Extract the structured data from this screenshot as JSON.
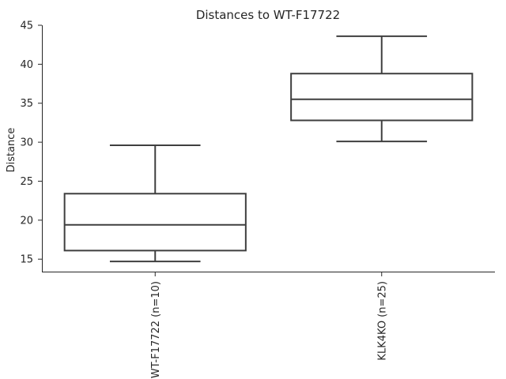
{
  "chart_data": {
    "type": "box",
    "title": "Distances to WT-F17722",
    "xlabel": "",
    "ylabel": "Distance",
    "ylim": [
      13.3,
      45
    ],
    "yticks": [
      15,
      20,
      25,
      30,
      35,
      40,
      45
    ],
    "grid": false,
    "categories": [
      "WT-F17722 (n=10)",
      "KLK4KO (n=25)"
    ],
    "boxes": [
      {
        "category": "WT-F17722 (n=10)",
        "min": 14.7,
        "q1": 16.1,
        "median": 19.4,
        "q3": 23.4,
        "max": 29.6
      },
      {
        "category": "KLK4KO (n=25)",
        "min": 30.1,
        "q1": 32.8,
        "median": 35.5,
        "q3": 38.8,
        "max": 43.6
      }
    ],
    "colors": {
      "stroke": "#3f3f3f",
      "fill": "#ffffff",
      "axis": "#262626"
    }
  }
}
